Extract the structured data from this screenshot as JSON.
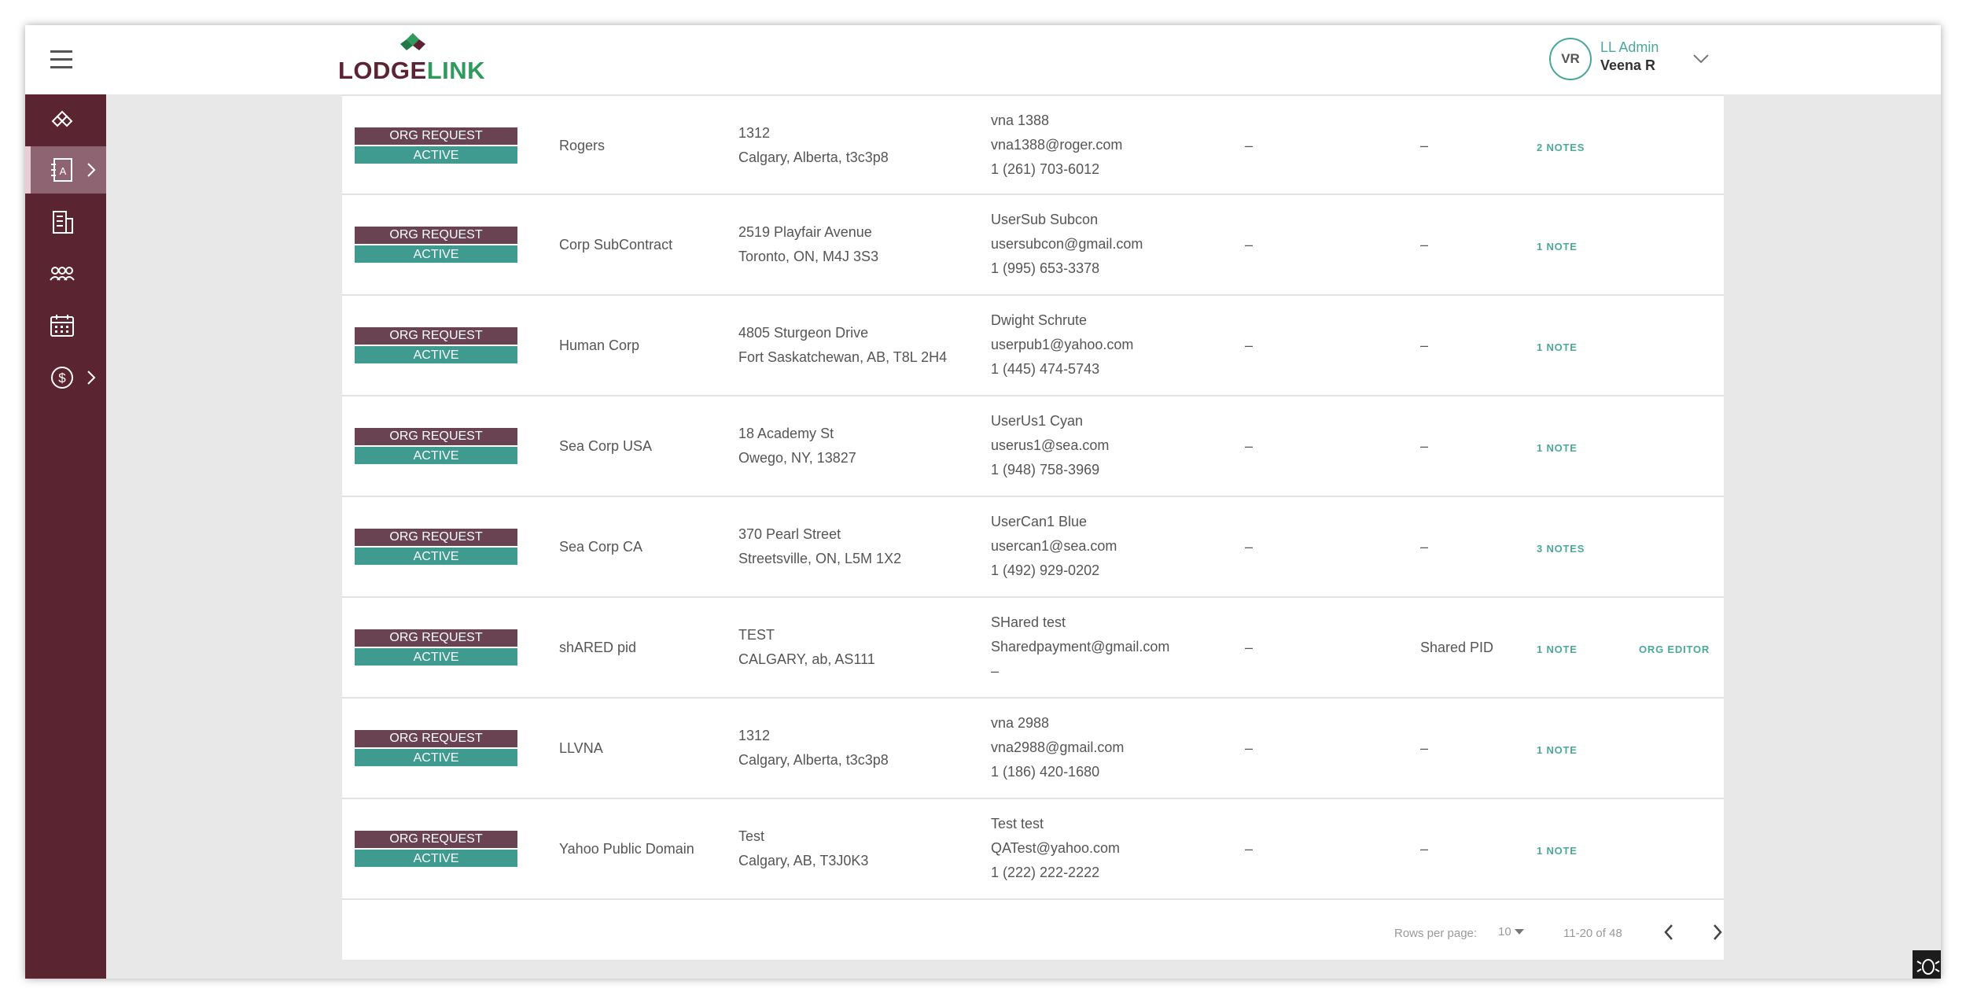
{
  "brand": {
    "part1": "LODGE",
    "part2": "LINK"
  },
  "user": {
    "initials": "VR",
    "role": "LL Admin",
    "name": "Veena R"
  },
  "sidebar": {
    "items": [
      {
        "icon": "lodgelink-mark-icon",
        "active": false
      },
      {
        "icon": "address-book-icon",
        "active": true
      },
      {
        "icon": "building-icon",
        "active": false
      },
      {
        "icon": "people-icon",
        "active": false
      },
      {
        "icon": "calendar-icon",
        "active": false
      },
      {
        "icon": "dollar-icon",
        "active": false
      }
    ]
  },
  "rows": [
    {
      "status_top": "ORG REQUEST",
      "status_bottom": "ACTIVE",
      "name": "Rogers",
      "address1": "1312",
      "address2": "Calgary, Alberta, t3c3p8",
      "contact_name": "vna 1388",
      "contact_email": "vna1388@roger.com",
      "contact_phone": "1 (261) 703-6012",
      "col5": "–",
      "col6": "–",
      "notes": "2 NOTES",
      "editor": ""
    },
    {
      "status_top": "ORG REQUEST",
      "status_bottom": "ACTIVE",
      "name": "Corp SubContract",
      "address1": "2519 Playfair Avenue",
      "address2": "Toronto, ON, M4J 3S3",
      "contact_name": "UserSub Subcon",
      "contact_email": "usersubcon@gmail.com",
      "contact_phone": "1 (995) 653-3378",
      "col5": "–",
      "col6": "–",
      "notes": "1 NOTE",
      "editor": ""
    },
    {
      "status_top": "ORG REQUEST",
      "status_bottom": "ACTIVE",
      "name": "Human Corp",
      "address1": "4805 Sturgeon Drive",
      "address2": "Fort Saskatchewan, AB, T8L 2H4",
      "contact_name": "Dwight Schrute",
      "contact_email": "userpub1@yahoo.com",
      "contact_phone": "1 (445) 474-5743",
      "col5": "–",
      "col6": "–",
      "notes": "1 NOTE",
      "editor": ""
    },
    {
      "status_top": "ORG REQUEST",
      "status_bottom": "ACTIVE",
      "name": "Sea Corp USA",
      "address1": "18 Academy St",
      "address2": "Owego, NY, 13827",
      "contact_name": "UserUs1 Cyan",
      "contact_email": "userus1@sea.com",
      "contact_phone": "1 (948) 758-3969",
      "col5": "–",
      "col6": "–",
      "notes": "1 NOTE",
      "editor": ""
    },
    {
      "status_top": "ORG REQUEST",
      "status_bottom": "ACTIVE",
      "name": "Sea Corp CA",
      "address1": "370 Pearl Street",
      "address2": "Streetsville, ON, L5M 1X2",
      "contact_name": "UserCan1 Blue",
      "contact_email": "usercan1@sea.com",
      "contact_phone": "1 (492) 929-0202",
      "col5": "–",
      "col6": "–",
      "notes": "3 NOTES",
      "editor": ""
    },
    {
      "status_top": "ORG REQUEST",
      "status_bottom": "ACTIVE",
      "name": "shARED pid",
      "address1": "TEST",
      "address2": "CALGARY, ab, AS111",
      "contact_name": "SHared test",
      "contact_email": "Sharedpayment@gmail.com",
      "contact_phone": "–",
      "col5": "–",
      "col6": "Shared PID",
      "notes": "1 NOTE",
      "editor": "ORG EDITOR"
    },
    {
      "status_top": "ORG REQUEST",
      "status_bottom": "ACTIVE",
      "name": "LLVNA",
      "address1": "1312",
      "address2": "Calgary, Alberta, t3c3p8",
      "contact_name": "vna 2988",
      "contact_email": "vna2988@gmail.com",
      "contact_phone": "1 (186) 420-1680",
      "col5": "–",
      "col6": "–",
      "notes": "1 NOTE",
      "editor": ""
    },
    {
      "status_top": "ORG REQUEST",
      "status_bottom": "ACTIVE",
      "name": "Yahoo Public Domain",
      "address1": "Test",
      "address2": "Calgary, AB, T3J0K3",
      "contact_name": "Test test",
      "contact_email": "QATest@yahoo.com",
      "contact_phone": "1 (222) 222-2222",
      "col5": "–",
      "col6": "–",
      "notes": "1 NOTE",
      "editor": ""
    }
  ],
  "pagination": {
    "rows_label": "Rows per page:",
    "rows_value": "10",
    "range": "11-20 of 48"
  },
  "colors": {
    "brand_maroon": "#5a2430",
    "accent_teal": "#3f9a8f",
    "status_maroon": "#6a4352"
  }
}
